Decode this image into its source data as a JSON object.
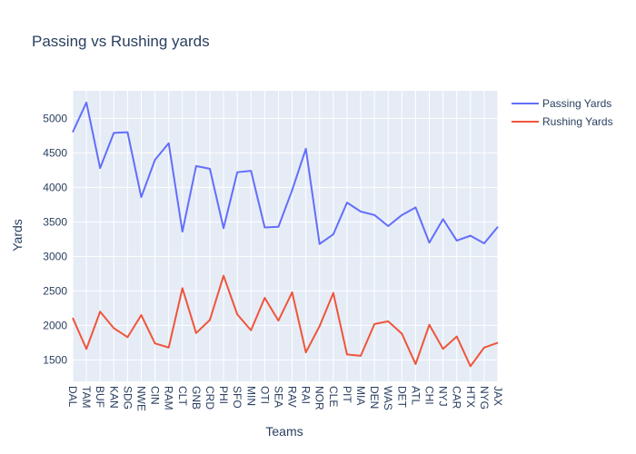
{
  "chart_data": {
    "type": "line",
    "title": "Passing vs Rushing yards",
    "xlabel": "Teams",
    "ylabel": "Yards",
    "ylim": [
      1190,
      5400
    ],
    "yticks": [
      1500,
      2000,
      2500,
      3000,
      3500,
      4000,
      4500,
      5000
    ],
    "grid": true,
    "legend_position": "top-right",
    "categories": [
      "DAL",
      "TAM",
      "BUF",
      "KAN",
      "SDG",
      "NWE",
      "CIN",
      "RAM",
      "CLT",
      "GNB",
      "CRD",
      "PHI",
      "SFO",
      "MIN",
      "OTI",
      "SEA",
      "RAV",
      "RAI",
      "NOR",
      "CLE",
      "PIT",
      "MIA",
      "DEN",
      "WAS",
      "DET",
      "ATL",
      "CHI",
      "NYJ",
      "CAR",
      "HTX",
      "NYG",
      "JAX"
    ],
    "series": [
      {
        "name": "Passing Yards",
        "color": "#636efa",
        "values": [
          4800,
          5230,
          4280,
          4790,
          4800,
          3860,
          4400,
          4640,
          3360,
          4310,
          4270,
          3410,
          4220,
          4240,
          3420,
          3430,
          3960,
          4560,
          3180,
          3320,
          3780,
          3650,
          3600,
          3440,
          3600,
          3710,
          3200,
          3540,
          3230,
          3300,
          3190,
          3430
        ]
      },
      {
        "name": "Rushing Yards",
        "color": "#ef553b",
        "values": [
          2110,
          1660,
          2200,
          1960,
          1830,
          2150,
          1740,
          1680,
          2540,
          1890,
          2080,
          2720,
          2160,
          1930,
          2400,
          2070,
          2480,
          1610,
          1990,
          2470,
          1580,
          1560,
          2020,
          2060,
          1880,
          1440,
          2010,
          1660,
          1840,
          1410,
          1680,
          1750
        ]
      }
    ]
  }
}
